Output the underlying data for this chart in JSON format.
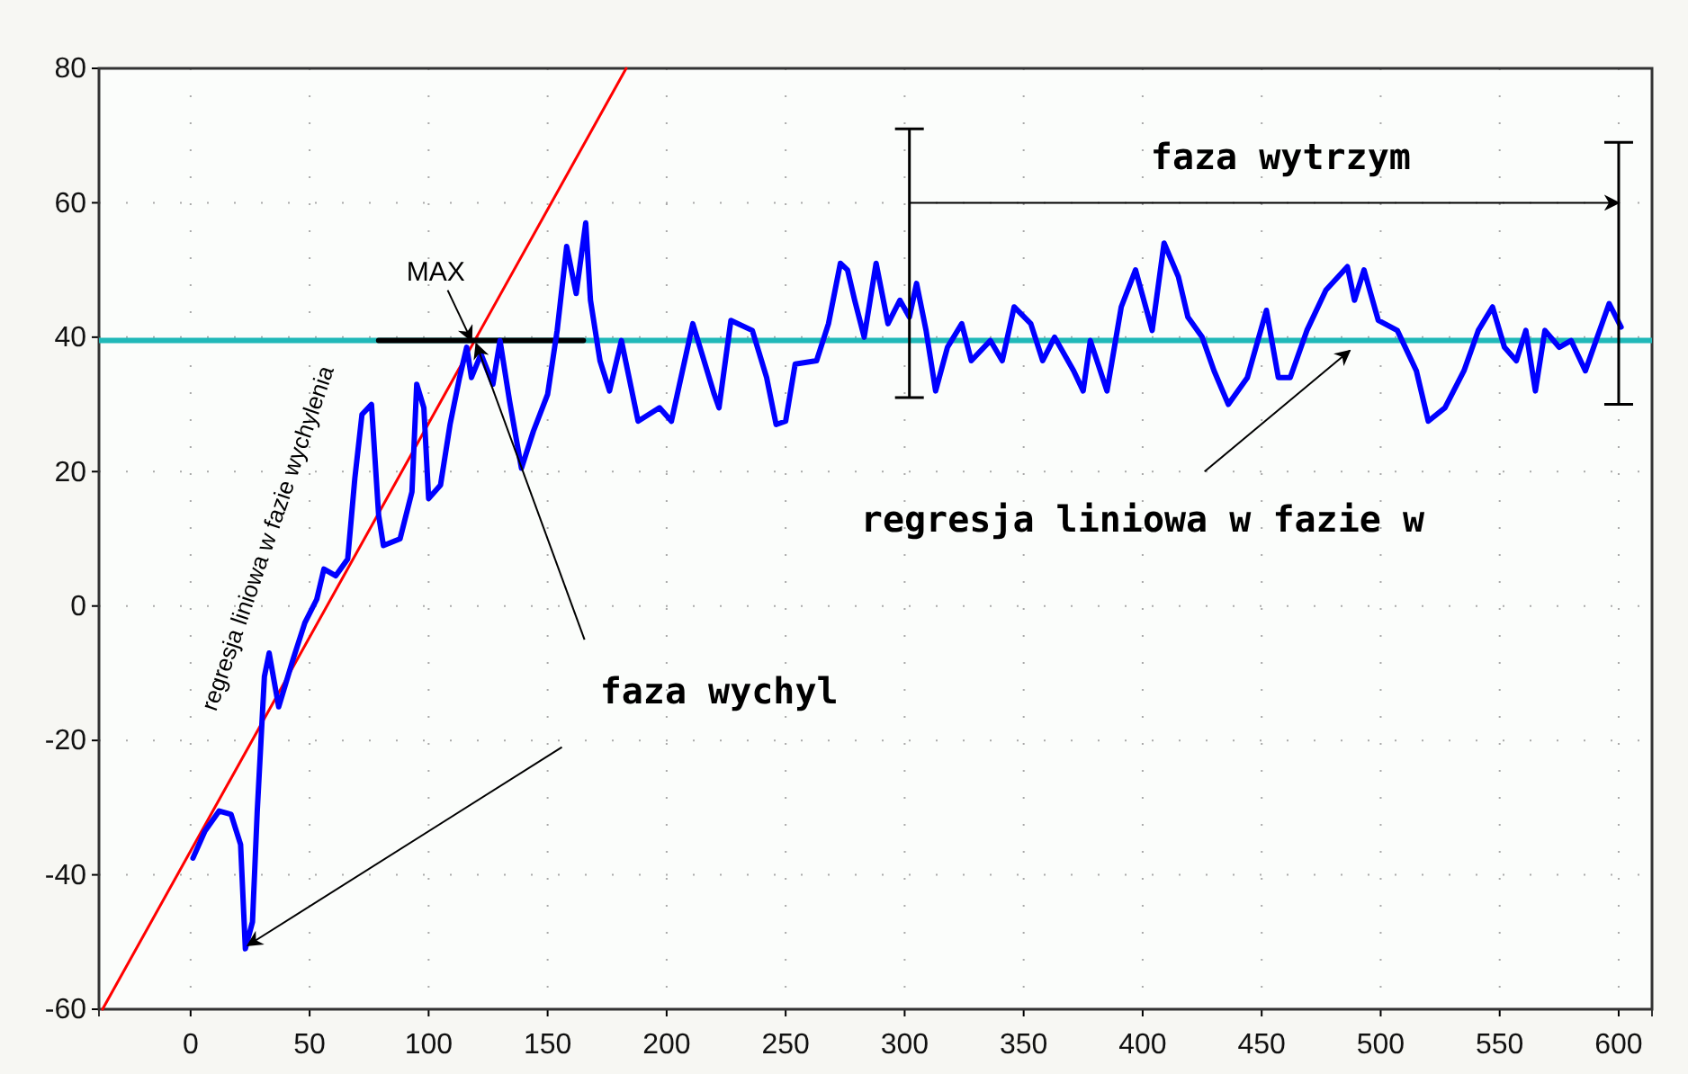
{
  "chart_data": {
    "type": "line",
    "xlim": [
      -38.5,
      614
    ],
    "ylim": [
      -60,
      80
    ],
    "xticks": [
      0,
      50,
      100,
      150,
      200,
      250,
      300,
      350,
      400,
      450,
      500,
      550,
      600
    ],
    "yticks": [
      -60,
      -40,
      -20,
      0,
      20,
      40,
      60,
      80
    ],
    "grid": true,
    "marker": "none",
    "line_style": "solid",
    "series": [
      {
        "color": "#ff0000",
        "x": [
          -37,
          183
        ],
        "values": [
          -60,
          80
        ]
      },
      {
        "color": "#000000",
        "x": [
          79,
          165
        ],
        "values": [
          39.5,
          39.5
        ]
      },
      {
        "color": "#0000ff",
        "x": [
          1,
          6,
          12,
          17,
          21,
          23,
          26,
          28,
          31,
          33,
          37,
          43,
          48,
          53,
          56,
          61,
          66,
          69,
          72,
          76,
          79,
          81,
          88,
          93,
          95,
          98,
          100,
          105,
          109,
          113,
          116,
          118,
          122,
          127,
          130,
          134,
          139,
          144,
          150,
          154,
          158,
          162,
          166,
          168,
          172,
          176,
          181,
          188,
          197,
          202,
          211,
          220,
          222,
          227,
          236,
          242,
          246,
          250,
          254,
          263,
          268,
          273,
          276,
          279,
          283,
          288,
          293,
          298,
          302,
          305,
          309,
          313,
          318,
          324,
          328,
          336,
          341,
          346,
          353,
          358,
          363,
          371,
          375,
          378,
          385,
          391,
          397,
          404,
          409,
          415,
          419,
          425,
          430,
          436,
          444,
          452,
          457,
          462,
          469,
          477,
          486,
          489,
          493,
          499,
          507,
          515,
          520,
          527,
          535,
          541,
          547,
          552,
          557,
          561,
          565,
          569,
          575,
          580,
          586,
          591,
          596,
          601
        ],
        "values": [
          -37.5,
          -33.5,
          -30.5,
          -31,
          -35.5,
          -51,
          -47,
          -30.5,
          -10.5,
          -7,
          -15,
          -8,
          -2.5,
          1,
          5.5,
          4.5,
          7,
          19,
          28.5,
          30,
          13.5,
          9,
          10,
          17,
          33,
          29.5,
          16,
          18,
          27,
          34,
          38.5,
          34,
          37.5,
          33,
          39.5,
          30.5,
          20.5,
          26,
          31.5,
          41,
          53.5,
          46.5,
          57,
          45.5,
          36.5,
          32,
          39.5,
          27.5,
          29.5,
          27.5,
          42,
          31.5,
          29.5,
          42.5,
          41,
          34,
          27,
          27.5,
          36,
          36.5,
          42,
          51,
          50,
          45.5,
          40,
          51,
          42,
          45.5,
          43,
          48,
          41,
          32,
          38.5,
          42,
          36.5,
          39.5,
          36.5,
          44.5,
          42,
          36.5,
          40,
          35,
          32,
          39.5,
          32,
          44.5,
          50,
          41,
          54,
          49,
          43,
          40,
          35,
          30,
          34,
          44,
          34,
          34,
          41,
          47,
          50.5,
          45.5,
          50,
          42.5,
          41,
          35,
          27.5,
          29.5,
          35,
          41,
          44.5,
          38.5,
          36.5,
          41,
          32,
          41,
          38.5,
          39.5,
          35,
          40,
          45,
          41.5
        ]
      }
    ],
    "ref_lines": [
      {
        "axis": "y",
        "value": 39.5,
        "color": "#20b8b8"
      }
    ],
    "annotations": [
      {
        "text": "MAX",
        "x": 118,
        "y": 39.5
      },
      "faza wytrzym",
      {
        "text": "regresja liniowa w fazie w",
        "x": 487,
        "y": 38
      },
      {
        "text": "faza wychyl",
        "x": 120,
        "y": 39
      },
      "regresja liniowa w fazie wychylenia"
    ]
  }
}
